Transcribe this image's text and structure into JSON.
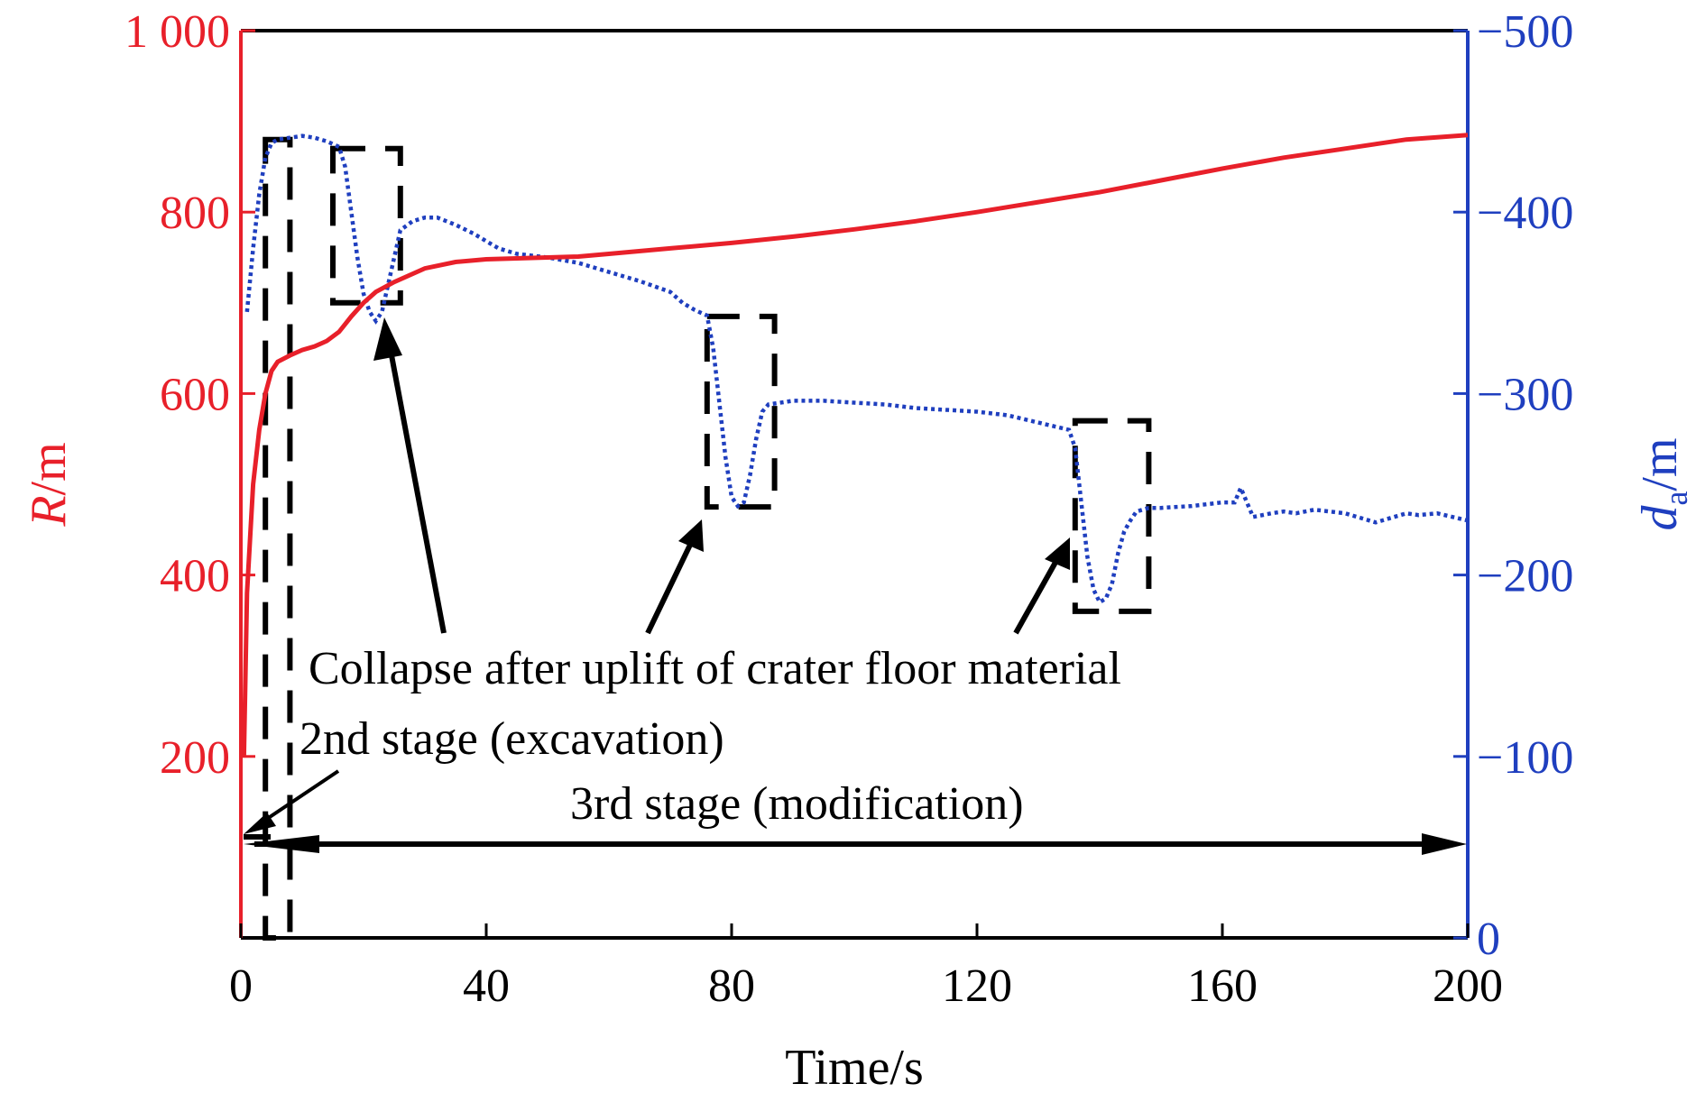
{
  "chart_data": {
    "type": "line",
    "title": "",
    "xlabel": "Time/s",
    "ylabel_left": {
      "symbol": "R",
      "unit": "/m"
    },
    "ylabel_right": {
      "symbol": "d",
      "subscript": "a",
      "unit": "/m"
    },
    "xlim": [
      0,
      200
    ],
    "ylim_left": [
      0,
      1000
    ],
    "ylim_right": [
      0,
      -500
    ],
    "x_ticks": [
      {
        "value": 0,
        "label": "0"
      },
      {
        "value": 40,
        "label": "40"
      },
      {
        "value": 80,
        "label": "80"
      },
      {
        "value": 120,
        "label": "120"
      },
      {
        "value": 160,
        "label": "160"
      },
      {
        "value": 200,
        "label": "200"
      }
    ],
    "y_left_ticks": [
      {
        "value": 200,
        "label": "200"
      },
      {
        "value": 400,
        "label": "400"
      },
      {
        "value": 600,
        "label": "600"
      },
      {
        "value": 800,
        "label": "800"
      },
      {
        "value": 1000,
        "label": "1 000"
      }
    ],
    "y_right_ticks": [
      {
        "value": 0,
        "label": "0"
      },
      {
        "value": -100,
        "label": "−100"
      },
      {
        "value": -200,
        "label": "−200"
      },
      {
        "value": -300,
        "label": "−300"
      },
      {
        "value": -400,
        "label": "−400"
      },
      {
        "value": -500,
        "label": "−500"
      }
    ],
    "grid": false,
    "colors": {
      "R": "#e8202a",
      "da": "#1f3fbf",
      "annotation": "#000000"
    },
    "series": [
      {
        "axis": "left",
        "style": "solid",
        "points": [
          [
            0.5,
            200
          ],
          [
            1,
            380
          ],
          [
            2,
            500
          ],
          [
            3,
            560
          ],
          [
            4,
            600
          ],
          [
            5,
            625
          ],
          [
            6,
            635
          ],
          [
            8,
            642
          ],
          [
            10,
            648
          ],
          [
            12,
            652
          ],
          [
            14,
            658
          ],
          [
            16,
            668
          ],
          [
            18,
            685
          ],
          [
            20,
            700
          ],
          [
            22,
            712
          ],
          [
            25,
            723
          ],
          [
            30,
            738
          ],
          [
            35,
            745
          ],
          [
            40,
            748
          ],
          [
            45,
            749
          ],
          [
            50,
            750
          ],
          [
            55,
            751
          ],
          [
            60,
            754
          ],
          [
            70,
            760
          ],
          [
            80,
            766
          ],
          [
            90,
            773
          ],
          [
            100,
            781
          ],
          [
            110,
            790
          ],
          [
            120,
            800
          ],
          [
            130,
            811
          ],
          [
            140,
            822
          ],
          [
            150,
            835
          ],
          [
            160,
            848
          ],
          [
            170,
            860
          ],
          [
            180,
            870
          ],
          [
            190,
            880
          ],
          [
            200,
            885
          ]
        ]
      },
      {
        "axis": "right",
        "style": "dotted",
        "points": [
          [
            1,
            -345
          ],
          [
            2,
            -380
          ],
          [
            3,
            -410
          ],
          [
            4,
            -430
          ],
          [
            5,
            -438
          ],
          [
            6,
            -440
          ],
          [
            8,
            -441
          ],
          [
            10,
            -442
          ],
          [
            12,
            -441
          ],
          [
            14,
            -439
          ],
          [
            16,
            -436
          ],
          [
            17,
            -425
          ],
          [
            18,
            -400
          ],
          [
            19,
            -375
          ],
          [
            20,
            -355
          ],
          [
            21,
            -345
          ],
          [
            22,
            -340
          ],
          [
            23,
            -345
          ],
          [
            24,
            -360
          ],
          [
            25,
            -375
          ],
          [
            26,
            -390
          ],
          [
            28,
            -395
          ],
          [
            30,
            -397
          ],
          [
            32,
            -397
          ],
          [
            35,
            -393
          ],
          [
            38,
            -388
          ],
          [
            40,
            -384
          ],
          [
            42,
            -380
          ],
          [
            45,
            -377
          ],
          [
            50,
            -375
          ],
          [
            55,
            -372
          ],
          [
            60,
            -367
          ],
          [
            65,
            -362
          ],
          [
            70,
            -356
          ],
          [
            72,
            -350
          ],
          [
            74,
            -346
          ],
          [
            76,
            -343
          ],
          [
            77,
            -325
          ],
          [
            78,
            -295
          ],
          [
            79,
            -265
          ],
          [
            80,
            -243
          ],
          [
            81,
            -238
          ],
          [
            82,
            -240
          ],
          [
            83,
            -255
          ],
          [
            84,
            -275
          ],
          [
            85,
            -290
          ],
          [
            86,
            -294
          ],
          [
            90,
            -296
          ],
          [
            95,
            -296
          ],
          [
            100,
            -295
          ],
          [
            105,
            -294
          ],
          [
            110,
            -292
          ],
          [
            115,
            -291
          ],
          [
            120,
            -290
          ],
          [
            125,
            -288
          ],
          [
            130,
            -284
          ],
          [
            135,
            -280
          ],
          [
            136,
            -270
          ],
          [
            137,
            -240
          ],
          [
            138,
            -210
          ],
          [
            139,
            -192
          ],
          [
            140,
            -185
          ],
          [
            141,
            -187
          ],
          [
            142,
            -195
          ],
          [
            143,
            -212
          ],
          [
            144,
            -224
          ],
          [
            145,
            -230
          ],
          [
            146,
            -235
          ],
          [
            148,
            -237
          ],
          [
            150,
            -237
          ],
          [
            155,
            -238
          ],
          [
            160,
            -240
          ],
          [
            162,
            -240
          ],
          [
            163,
            -248
          ],
          [
            164,
            -240
          ],
          [
            165,
            -232
          ],
          [
            168,
            -234
          ],
          [
            170,
            -235
          ],
          [
            172,
            -234
          ],
          [
            175,
            -236
          ],
          [
            180,
            -234
          ],
          [
            185,
            -229
          ],
          [
            188,
            -232
          ],
          [
            190,
            -234
          ],
          [
            192,
            -233
          ],
          [
            195,
            -234
          ],
          [
            200,
            -230
          ]
        ]
      }
    ],
    "stage_arrow_y": 50,
    "stage_divider_x": 4,
    "dashed_boxes": [
      {
        "x": [
          4,
          8
        ],
        "y_left": [
          0,
          880
        ]
      },
      {
        "x": [
          15,
          26
        ],
        "y_left": [
          700,
          870
        ]
      },
      {
        "x": [
          76,
          87
        ],
        "y_left": [
          475,
          685
        ]
      },
      {
        "x": [
          136,
          148
        ],
        "y_left": [
          360,
          570
        ]
      }
    ],
    "annotations": {
      "collapse": "Collapse after uplift of crater floor material",
      "stage2": "2nd stage (excavation)",
      "stage3": "3rd stage (modification)"
    }
  }
}
